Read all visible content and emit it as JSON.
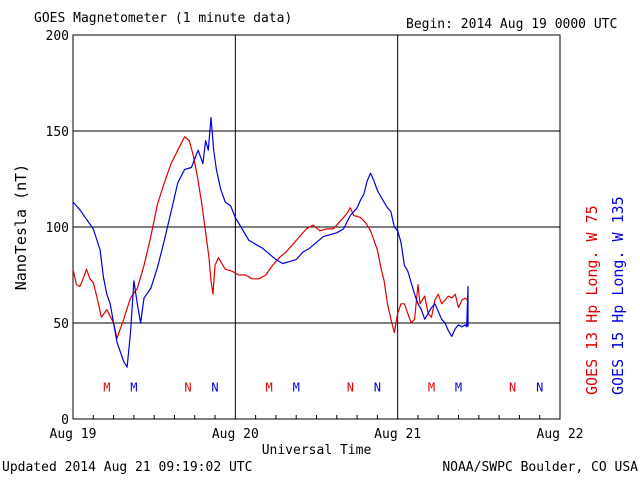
{
  "header": {
    "title": "GOES Magnetometer (1 minute data)",
    "begin": "Begin:  2014 Aug 19 0000 UTC"
  },
  "footer": {
    "updated": "Updated 2014 Aug 21 09:19:02 UTC",
    "credit": "NOAA/SWPC Boulder, CO USA"
  },
  "colors": {
    "goes13": "#e00000",
    "goes15": "#0000e0",
    "grid": "#000000"
  },
  "chart_data": {
    "type": "line",
    "title": "GOES Magnetometer (1 minute data)",
    "xlabel": "Universal Time",
    "ylabel": "NanoTesla (nT)",
    "xlim": [
      0,
      72
    ],
    "ylim": [
      0,
      200
    ],
    "x_tick_values": [
      0,
      24,
      48,
      72
    ],
    "x_tick_labels": [
      "Aug 19",
      "Aug 20",
      "Aug 21",
      "Aug 22"
    ],
    "y_tick_values": [
      0,
      50,
      100,
      150,
      200
    ],
    "y_tick_labels": [
      "0",
      "50",
      "100",
      "150",
      "200"
    ],
    "grid": true,
    "series": [
      {
        "name": "GOES 13 Hp  Long. W 75",
        "color": "#e00000",
        "points": [
          [
            0,
            78
          ],
          [
            0.5,
            70
          ],
          [
            1,
            69
          ],
          [
            1.5,
            73
          ],
          [
            2,
            78
          ],
          [
            2.5,
            73
          ],
          [
            3,
            71
          ],
          [
            3.5,
            64
          ],
          [
            4.2,
            53
          ],
          [
            5,
            57
          ],
          [
            6,
            50
          ],
          [
            6.5,
            42
          ],
          [
            7,
            47
          ],
          [
            7.5,
            52
          ],
          [
            8.5,
            63
          ],
          [
            9.5,
            68
          ],
          [
            10.5,
            80
          ],
          [
            11.5,
            95
          ],
          [
            12.5,
            112
          ],
          [
            13.5,
            123
          ],
          [
            14.5,
            133
          ],
          [
            15.5,
            140
          ],
          [
            16.5,
            147
          ],
          [
            17.2,
            145
          ],
          [
            17.8,
            137
          ],
          [
            18.4,
            126
          ],
          [
            19,
            113
          ],
          [
            19.5,
            100
          ],
          [
            20.1,
            84
          ],
          [
            20.4,
            72
          ],
          [
            20.7,
            65
          ],
          [
            21,
            80
          ],
          [
            21.5,
            84
          ],
          [
            22.5,
            78
          ],
          [
            23.5,
            77
          ],
          [
            24.5,
            75
          ],
          [
            25.5,
            75
          ],
          [
            26.5,
            73
          ],
          [
            27.5,
            73
          ],
          [
            28.5,
            75
          ],
          [
            29.5,
            80
          ],
          [
            30.5,
            84
          ],
          [
            31.5,
            87
          ],
          [
            32.5,
            91
          ],
          [
            33.5,
            95
          ],
          [
            34.5,
            99
          ],
          [
            35.5,
            101
          ],
          [
            36.5,
            98
          ],
          [
            37.5,
            99
          ],
          [
            38.5,
            99
          ],
          [
            39.5,
            103
          ],
          [
            40.5,
            107
          ],
          [
            41,
            110
          ],
          [
            41.5,
            106
          ],
          [
            42.5,
            105
          ],
          [
            43.3,
            102
          ],
          [
            44,
            98
          ],
          [
            45,
            88
          ],
          [
            45.5,
            79
          ],
          [
            46,
            72
          ],
          [
            46.5,
            60
          ],
          [
            47,
            52
          ],
          [
            47.5,
            45
          ],
          [
            48,
            55
          ],
          [
            48.5,
            60
          ],
          [
            49,
            60
          ],
          [
            49.5,
            55
          ],
          [
            50,
            50
          ],
          [
            50.5,
            52
          ],
          [
            51,
            70
          ],
          [
            51.3,
            60
          ],
          [
            52,
            64
          ],
          [
            52.5,
            55
          ],
          [
            53,
            53
          ],
          [
            53.5,
            62
          ],
          [
            54,
            65
          ],
          [
            54.5,
            60
          ],
          [
            55,
            62
          ],
          [
            55.5,
            64
          ],
          [
            56,
            63
          ],
          [
            56.5,
            65
          ],
          [
            57,
            58
          ],
          [
            57.5,
            62
          ],
          [
            58,
            63
          ],
          [
            58.3,
            62
          ]
        ]
      },
      {
        "name": "GOES 15 Hp  Long. W 135",
        "color": "#0000e0",
        "points": [
          [
            0,
            113
          ],
          [
            1,
            109
          ],
          [
            2,
            104
          ],
          [
            3,
            99
          ],
          [
            4,
            88
          ],
          [
            4.5,
            74
          ],
          [
            5,
            65
          ],
          [
            5.5,
            60
          ],
          [
            6,
            50
          ],
          [
            6.5,
            40
          ],
          [
            7,
            35
          ],
          [
            7.5,
            30
          ],
          [
            8,
            27
          ],
          [
            8.5,
            45
          ],
          [
            9,
            72
          ],
          [
            9.5,
            60
          ],
          [
            10,
            50
          ],
          [
            10.5,
            63
          ],
          [
            11.5,
            68
          ],
          [
            12.5,
            79
          ],
          [
            13.5,
            93
          ],
          [
            14.5,
            108
          ],
          [
            15.5,
            123
          ],
          [
            16.5,
            130
          ],
          [
            17.5,
            131
          ],
          [
            18.5,
            140
          ],
          [
            19.2,
            133
          ],
          [
            19.6,
            145
          ],
          [
            20,
            140
          ],
          [
            20.4,
            157
          ],
          [
            20.8,
            140
          ],
          [
            21.2,
            130
          ],
          [
            21.8,
            120
          ],
          [
            22.5,
            113
          ],
          [
            23.3,
            111
          ],
          [
            24,
            105
          ],
          [
            25,
            99
          ],
          [
            26,
            93
          ],
          [
            27,
            91
          ],
          [
            28,
            89
          ],
          [
            29,
            86
          ],
          [
            30,
            83
          ],
          [
            31,
            81
          ],
          [
            32,
            82
          ],
          [
            33,
            83
          ],
          [
            34,
            87
          ],
          [
            35,
            89
          ],
          [
            36,
            92
          ],
          [
            37,
            95
          ],
          [
            38,
            96
          ],
          [
            39,
            97
          ],
          [
            40,
            99
          ],
          [
            41,
            106
          ],
          [
            42,
            110
          ],
          [
            42.5,
            114
          ],
          [
            43,
            117
          ],
          [
            43.5,
            124
          ],
          [
            44,
            128
          ],
          [
            44.5,
            124
          ],
          [
            45,
            119
          ],
          [
            45.8,
            114
          ],
          [
            46.5,
            110
          ],
          [
            47,
            108
          ],
          [
            47.5,
            100
          ],
          [
            48,
            98
          ],
          [
            48.5,
            92
          ],
          [
            49,
            80
          ],
          [
            49.5,
            77
          ],
          [
            50,
            71
          ],
          [
            50.5,
            65
          ],
          [
            51,
            60
          ],
          [
            51.5,
            57
          ],
          [
            52,
            52
          ],
          [
            52.5,
            55
          ],
          [
            53,
            58
          ],
          [
            53.5,
            60
          ],
          [
            54,
            56
          ],
          [
            54.5,
            52
          ],
          [
            55,
            50
          ],
          [
            55.5,
            46
          ],
          [
            56,
            43
          ],
          [
            56.5,
            47
          ],
          [
            57,
            49
          ],
          [
            57.5,
            48
          ],
          [
            58,
            49
          ],
          [
            58.2,
            48
          ],
          [
            58.4,
            69
          ],
          [
            58.4,
            48
          ]
        ]
      }
    ],
    "markers": [
      {
        "label": "M",
        "x": 5.0,
        "series": 0
      },
      {
        "label": "M",
        "x": 9.0,
        "series": 1
      },
      {
        "label": "N",
        "x": 17.0,
        "series": 0
      },
      {
        "label": "N",
        "x": 21.0,
        "series": 1
      },
      {
        "label": "M",
        "x": 29.0,
        "series": 0
      },
      {
        "label": "M",
        "x": 33.0,
        "series": 1
      },
      {
        "label": "N",
        "x": 41.0,
        "series": 0
      },
      {
        "label": "N",
        "x": 45.0,
        "series": 1
      },
      {
        "label": "M",
        "x": 53.0,
        "series": 0
      },
      {
        "label": "M",
        "x": 57.0,
        "series": 1
      },
      {
        "label": "N",
        "x": 65.0,
        "series": 0
      },
      {
        "label": "N",
        "x": 69.0,
        "series": 1
      }
    ],
    "marker_y": 17
  }
}
